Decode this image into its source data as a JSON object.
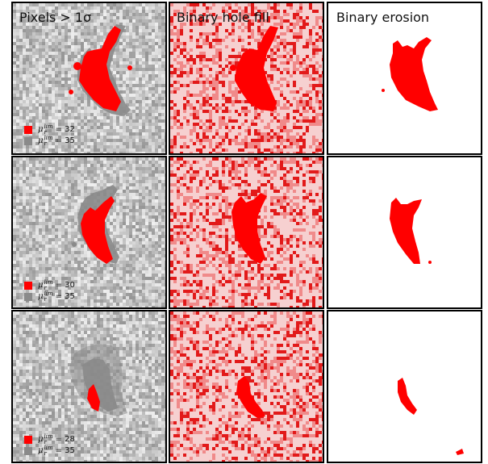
{
  "columns": [
    {
      "id": "sigma",
      "title": "Pixels > 1σ"
    },
    {
      "id": "fill",
      "title": "Binary hole fill"
    },
    {
      "id": "erosion",
      "title": "Binary erosion"
    }
  ],
  "rows": [
    {
      "legend": [
        {
          "symbol": "μ",
          "sup": "lim",
          "sub": "r",
          "text": "= 32",
          "color": "#ff0000"
        },
        {
          "symbol": "μ",
          "sup": "lim",
          "sub": "r",
          "text": "= 35",
          "color": "#8a8a8a"
        }
      ]
    },
    {
      "legend": [
        {
          "symbol": "μ",
          "sup": "lim",
          "sub": "r",
          "text": "= 30",
          "color": "#ff0000"
        },
        {
          "symbol": "μ",
          "sup": "lim",
          "sub": "r",
          "text": "= 35",
          "color": "#8a8a8a"
        }
      ]
    },
    {
      "legend": [
        {
          "symbol": "μ",
          "sup": "lim",
          "sub": "r",
          "text": "= 28",
          "color": "#ff0000"
        },
        {
          "symbol": "μ",
          "sup": "lim",
          "sub": "r",
          "text": "= 35",
          "color": "#8a8a8a"
        }
      ]
    }
  ],
  "colors": {
    "mask_red": "#ff0000",
    "extended_gray": "#8a8a8a",
    "noise_background": "#bdbdbd",
    "fill_background": "#f6d0d0",
    "erosion_background": "#ffffff"
  }
}
